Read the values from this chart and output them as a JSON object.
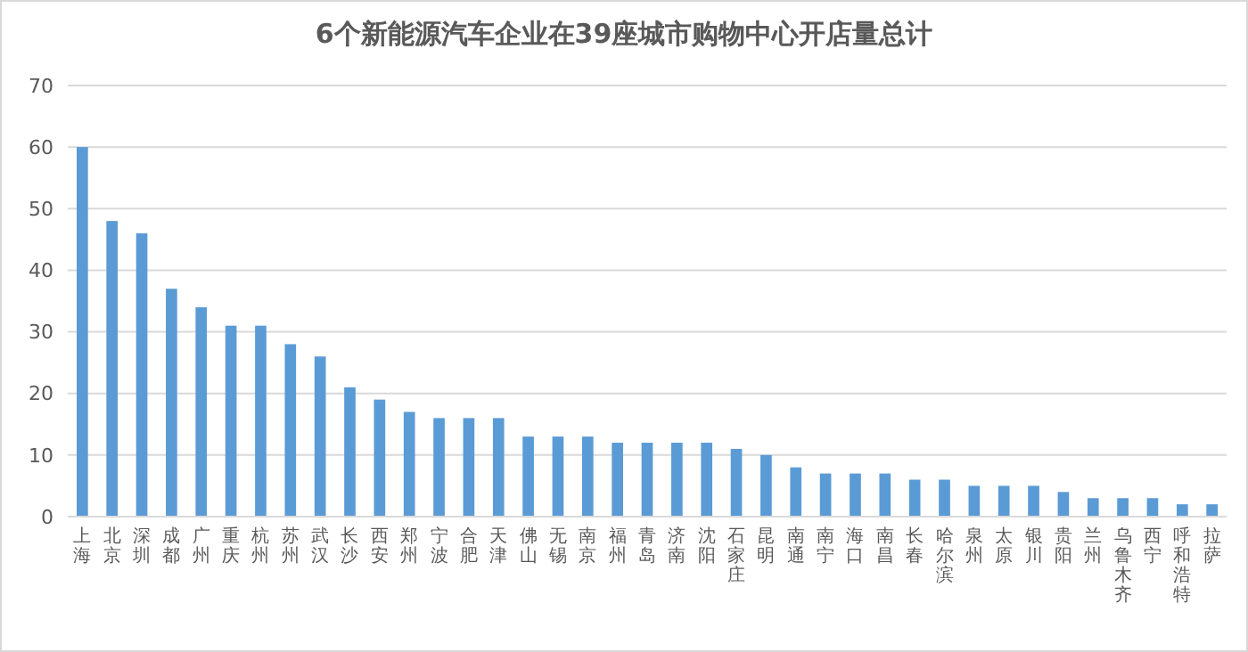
{
  "chart_data": {
    "type": "bar",
    "title": "6个新能源汽车企业在39座城市购物中心开店量总计",
    "categories": [
      "上海",
      "北京",
      "深圳",
      "成都",
      "广州",
      "重庆",
      "杭州",
      "苏州",
      "武汉",
      "长沙",
      "西安",
      "郑州",
      "宁波",
      "合肥",
      "天津",
      "佛山",
      "无锡",
      "南京",
      "福州",
      "青岛",
      "济南",
      "沈阳",
      "石家庄",
      "昆明",
      "南通",
      "南宁",
      "海口",
      "南昌",
      "长春",
      "哈尔滨",
      "泉州",
      "太原",
      "银川",
      "贵阳",
      "兰州",
      "乌鲁木齐",
      "西宁",
      "呼和浩特",
      "拉萨"
    ],
    "values": [
      60,
      48,
      46,
      37,
      34,
      31,
      31,
      28,
      26,
      21,
      19,
      17,
      16,
      16,
      16,
      13,
      13,
      13,
      12,
      12,
      12,
      12,
      11,
      10,
      8,
      7,
      7,
      7,
      6,
      6,
      5,
      5,
      5,
      4,
      3,
      3,
      3,
      2,
      2
    ],
    "color": "#5b9bd5",
    "ylim": [
      0,
      70
    ],
    "yticks": [
      0,
      10,
      20,
      30,
      40,
      50,
      60,
      70
    ],
    "grid": "y"
  }
}
